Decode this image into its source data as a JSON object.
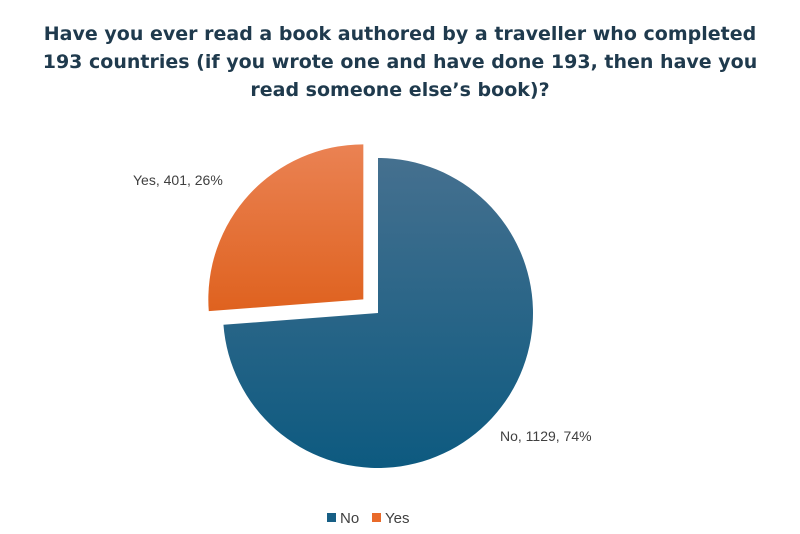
{
  "chart_data": {
    "type": "pie",
    "title": "Have you ever read a book authored by a traveller who completed 193 countries (if you wrote one and have done 193, then have you read someone else’s book)?",
    "categories": [
      "No",
      "Yes"
    ],
    "values": [
      1129,
      401
    ],
    "percentages": [
      74,
      26
    ],
    "data_labels": [
      "No, 1129, 74%",
      "Yes, 401, 26%"
    ],
    "exploded": [
      "Yes"
    ],
    "colors": [
      "#175f85",
      "#e96a2a"
    ],
    "legend": {
      "position": "bottom",
      "entries": [
        "No",
        "Yes"
      ]
    }
  }
}
